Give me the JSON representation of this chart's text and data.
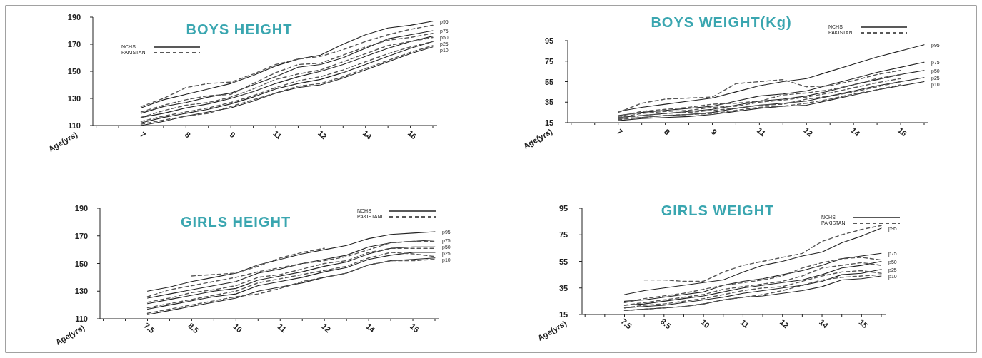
{
  "chart_data": [
    {
      "type": "line",
      "title": "BOYS HEIGHT",
      "xlabel": "Age(yrs)",
      "categories": [
        "7",
        null,
        "8",
        null,
        "9",
        null,
        "11",
        null,
        "12",
        null,
        "14",
        null,
        "16",
        null
      ],
      "ylim": [
        110,
        190
      ],
      "yticks": [
        110,
        130,
        150,
        170,
        190
      ],
      "annotations": [
        "NCHS",
        "PAKISTANI"
      ],
      "series": [
        {
          "name": "p95",
          "color": "#222222",
          "line_style": "solid",
          "values": [
            123,
            129,
            133,
            137,
            141,
            147,
            154,
            159,
            162,
            170,
            177,
            182,
            184,
            187
          ]
        },
        {
          "name": "p75",
          "color": "#222222",
          "line_style": "solid",
          "values": [
            119,
            124,
            127,
            131,
            134,
            140,
            146,
            153,
            155,
            160,
            167,
            174,
            177,
            180
          ]
        },
        {
          "name": "p50",
          "color": "#222222",
          "line_style": "solid",
          "values": [
            116,
            119,
            123,
            126,
            130,
            135,
            141,
            146,
            150,
            155,
            161,
            167,
            172,
            176
          ]
        },
        {
          "name": "p25",
          "color": "#222222",
          "line_style": "solid",
          "values": [
            112,
            116,
            119,
            122,
            126,
            131,
            137,
            141,
            144,
            149,
            155,
            161,
            167,
            172
          ]
        },
        {
          "name": "p10",
          "color": "#222222",
          "line_style": "solid",
          "values": [
            110,
            113,
            117,
            120,
            123,
            128,
            134,
            138,
            140,
            145,
            151,
            157,
            163,
            168
          ]
        },
        {
          "color": "#555555",
          "line_style": "dashed",
          "values": [
            124,
            130,
            138,
            141,
            142,
            148,
            155,
            159,
            161,
            166,
            172,
            177,
            181,
            184
          ]
        },
        {
          "color": "#555555",
          "line_style": "dashed",
          "values": [
            120,
            125,
            129,
            132,
            133,
            141,
            149,
            155,
            156,
            162,
            168,
            173,
            175,
            178
          ]
        },
        {
          "color": "#555555",
          "line_style": "dashed",
          "values": [
            116,
            121,
            125,
            127,
            131,
            137,
            144,
            148,
            151,
            157,
            163,
            169,
            172,
            175
          ]
        },
        {
          "color": "#555555",
          "line_style": "dashed",
          "values": [
            113,
            117,
            120,
            123,
            127,
            132,
            138,
            143,
            146,
            151,
            157,
            163,
            168,
            172
          ]
        },
        {
          "color": "#555555",
          "line_style": "dashed",
          "values": [
            111,
            114,
            117,
            119,
            124,
            129,
            134,
            139,
            141,
            146,
            152,
            158,
            164,
            169
          ]
        }
      ]
    },
    {
      "type": "line",
      "title": "BOYS WEIGHT(Kg)",
      "xlabel": "Age(yrs)",
      "categories": [
        "7",
        null,
        "8",
        null,
        "9",
        null,
        "11",
        null,
        "12",
        null,
        "14",
        null,
        "16",
        null
      ],
      "ylim": [
        15,
        95
      ],
      "yticks": [
        15,
        35,
        55,
        75,
        95
      ],
      "annotations": [
        "NCHS",
        "PAKISTANI"
      ],
      "series": [
        {
          "name": "p95",
          "color": "#222222",
          "line_style": "solid",
          "values": [
            26,
            30,
            33,
            36,
            39,
            45,
            51,
            55,
            58,
            65,
            72,
            79,
            85,
            91
          ]
        },
        {
          "name": "p75",
          "color": "#222222",
          "line_style": "solid",
          "values": [
            22,
            25,
            27,
            29,
            31,
            36,
            41,
            43,
            46,
            52,
            58,
            64,
            69,
            74
          ]
        },
        {
          "name": "p50",
          "color": "#222222",
          "line_style": "solid",
          "values": [
            20,
            22,
            24,
            26,
            28,
            32,
            36,
            38,
            41,
            46,
            52,
            57,
            62,
            66
          ]
        },
        {
          "name": "p25",
          "color": "#222222",
          "line_style": "solid",
          "values": [
            19,
            20,
            22,
            23,
            25,
            29,
            32,
            34,
            36,
            41,
            46,
            51,
            55,
            59
          ]
        },
        {
          "name": "p10",
          "color": "#222222",
          "line_style": "solid",
          "values": [
            17,
            19,
            20,
            21,
            23,
            26,
            29,
            31,
            32,
            37,
            42,
            47,
            51,
            55
          ]
        },
        {
          "color": "#555555",
          "line_style": "dashed",
          "values": [
            25,
            34,
            38,
            39,
            40,
            53,
            55,
            57,
            50,
            51,
            56,
            62,
            66,
            null
          ]
        },
        {
          "color": "#555555",
          "line_style": "dashed",
          "values": [
            21,
            26,
            28,
            30,
            33,
            34,
            36,
            42,
            44,
            47,
            52,
            58,
            62,
            null
          ]
        },
        {
          "color": "#555555",
          "line_style": "dashed",
          "values": [
            20,
            24,
            26,
            27,
            30,
            31,
            35,
            37,
            40,
            44,
            49,
            54,
            58,
            null
          ]
        },
        {
          "color": "#555555",
          "line_style": "dashed",
          "values": [
            19,
            22,
            24,
            25,
            27,
            29,
            32,
            33,
            38,
            41,
            45,
            50,
            55,
            null
          ]
        },
        {
          "color": "#555555",
          "line_style": "dashed",
          "values": [
            18,
            20,
            22,
            23,
            24,
            27,
            30,
            31,
            34,
            38,
            43,
            47,
            52,
            null
          ]
        }
      ]
    },
    {
      "type": "line",
      "title": "GIRLS HEIGHT",
      "xlabel": "Age(yrs)",
      "categories": [
        "7.5",
        null,
        "8.5",
        null,
        "10",
        null,
        "11",
        null,
        "12",
        null,
        "14",
        null,
        "15",
        null
      ],
      "ylim": [
        110,
        190
      ],
      "yticks": [
        110,
        130,
        150,
        170,
        190
      ],
      "annotations": [
        "NCHS",
        "PAKISTANI"
      ],
      "series": [
        {
          "name": "p95",
          "color": "#222222",
          "line_style": "solid",
          "values": [
            130,
            133,
            137,
            140,
            143,
            149,
            153,
            157,
            160,
            163,
            168,
            171,
            172,
            173
          ]
        },
        {
          "name": "p75",
          "color": "#222222",
          "line_style": "solid",
          "values": [
            125,
            128,
            131,
            134,
            137,
            143,
            146,
            150,
            153,
            156,
            162,
            165,
            166,
            167
          ]
        },
        {
          "name": "p50",
          "color": "#222222",
          "line_style": "solid",
          "values": [
            121,
            124,
            127,
            130,
            132,
            138,
            141,
            144,
            148,
            151,
            157,
            161,
            162,
            162
          ]
        },
        {
          "name": "p25",
          "color": "#222222",
          "line_style": "solid",
          "values": [
            117,
            120,
            123,
            126,
            128,
            134,
            137,
            140,
            144,
            147,
            153,
            156,
            158,
            158
          ]
        },
        {
          "name": "p10",
          "color": "#222222",
          "line_style": "solid",
          "values": [
            113,
            116,
            119,
            122,
            125,
            130,
            133,
            136,
            140,
            143,
            149,
            152,
            153,
            154
          ]
        },
        {
          "color": "#555555",
          "line_style": "dashed",
          "values": [
            null,
            null,
            141,
            142,
            143,
            148,
            154,
            158,
            161,
            null,
            null,
            null,
            null,
            null
          ]
        },
        {
          "color": "#555555",
          "line_style": "dashed",
          "values": [
            126,
            131,
            134,
            137,
            140,
            144,
            147,
            150,
            152,
            155,
            160,
            165,
            166,
            166
          ]
        },
        {
          "color": "#555555",
          "line_style": "dashed",
          "values": [
            122,
            125,
            129,
            131,
            134,
            140,
            142,
            146,
            150,
            152,
            158,
            161,
            161,
            161
          ]
        },
        {
          "color": "#555555",
          "line_style": "dashed",
          "values": [
            118,
            121,
            124,
            127,
            130,
            136,
            139,
            142,
            145,
            148,
            154,
            158,
            157,
            155
          ]
        },
        {
          "color": "#555555",
          "line_style": "dashed",
          "values": [
            114,
            117,
            120,
            123,
            126,
            128,
            132,
            137,
            140,
            143,
            149,
            152,
            152,
            153
          ]
        }
      ]
    },
    {
      "type": "line",
      "title": "GIRLS WEIGHT",
      "xlabel": "Age(yrs)",
      "categories": [
        "7.5",
        null,
        "8.5",
        null,
        "10",
        null,
        "11",
        null,
        "12",
        null,
        "14",
        null,
        "15",
        null
      ],
      "ylim": [
        15,
        95
      ],
      "yticks": [
        15,
        35,
        55,
        75,
        95
      ],
      "annotations": [
        "NCHS",
        "PAKISTANI"
      ],
      "series": [
        {
          "name": "p95",
          "color": "#222222",
          "line_style": "solid",
          "values": [
            30,
            33,
            35,
            37,
            39,
            41,
            47,
            52,
            55,
            59,
            62,
            69,
            74,
            80
          ]
        },
        {
          "name": "p75",
          "color": "#222222",
          "line_style": "solid",
          "values": [
            25,
            26,
            28,
            30,
            32,
            37,
            40,
            42,
            45,
            48,
            52,
            57,
            59,
            61
          ]
        },
        {
          "name": "p50",
          "color": "#222222",
          "line_style": "solid",
          "values": [
            22,
            23,
            25,
            27,
            29,
            32,
            35,
            37,
            39,
            41,
            45,
            50,
            52,
            55
          ]
        },
        {
          "name": "p25",
          "color": "#222222",
          "line_style": "solid",
          "values": [
            20,
            21,
            22,
            24,
            26,
            28,
            31,
            33,
            35,
            37,
            40,
            45,
            46,
            49
          ]
        },
        {
          "name": "p10",
          "color": "#222222",
          "line_style": "solid",
          "values": [
            18,
            19,
            20,
            21,
            23,
            26,
            28,
            29,
            31,
            33,
            36,
            41,
            42,
            44
          ]
        },
        {
          "color": "#555555",
          "line_style": "dashed",
          "values": [
            null,
            41,
            41,
            40,
            40,
            47,
            52,
            55,
            58,
            61,
            70,
            75,
            79,
            82
          ]
        },
        {
          "color": "#555555",
          "line_style": "dashed",
          "values": [
            24,
            27,
            29,
            31,
            34,
            37,
            39,
            41,
            44,
            50,
            54,
            57,
            58,
            56
          ]
        },
        {
          "color": "#555555",
          "line_style": "dashed",
          "values": [
            22,
            24,
            26,
            28,
            30,
            34,
            36,
            38,
            40,
            44,
            50,
            52,
            54,
            52
          ]
        },
        {
          "color": "#555555",
          "line_style": "dashed",
          "values": [
            20,
            22,
            23,
            25,
            27,
            30,
            33,
            35,
            36,
            40,
            44,
            47,
            48,
            46
          ]
        },
        {
          "color": "#555555",
          "line_style": "dashed",
          "values": [
            18,
            19,
            20,
            21,
            23,
            26,
            28,
            30,
            33,
            37,
            41,
            43,
            44,
            45
          ]
        }
      ]
    }
  ]
}
